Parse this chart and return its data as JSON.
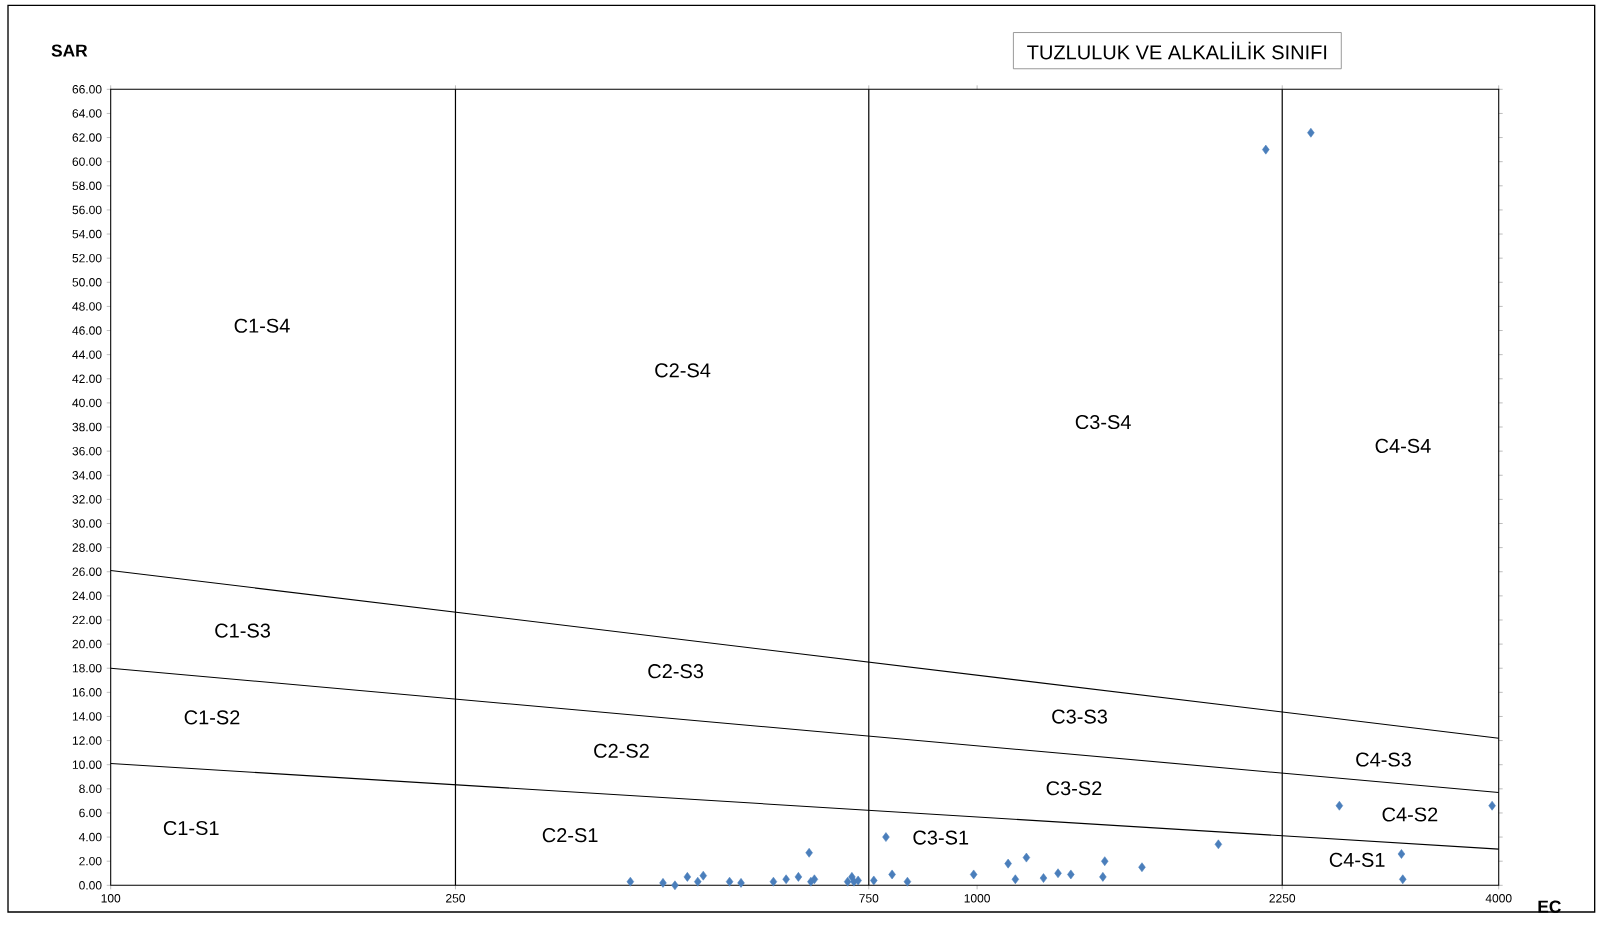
{
  "chart_data": {
    "type": "scatter",
    "title": "TUZLULUK VE ALKALİLİK SINIFI",
    "xlabel": "EC",
    "ylabel": "SAR",
    "log": "x",
    "marker": "diamond",
    "xlim": [
      100,
      4000
    ],
    "ylim": [
      0,
      66
    ],
    "xticks": [
      100,
      250,
      750,
      1000,
      2250,
      4000
    ],
    "yticks": [
      {
        "value": 0,
        "label": "0.00"
      },
      {
        "value": 2,
        "label": "2.00"
      },
      {
        "value": 4,
        "label": "4.00"
      },
      {
        "value": 6,
        "label": "6.00"
      },
      {
        "value": 8,
        "label": "8.00"
      },
      {
        "value": 10,
        "label": "10.00"
      },
      {
        "value": 12,
        "label": "12.00"
      },
      {
        "value": 14,
        "label": "14.00"
      },
      {
        "value": 16,
        "label": "16.00"
      },
      {
        "value": 18,
        "label": "18.00"
      },
      {
        "value": 20,
        "label": "20.00"
      },
      {
        "value": 22,
        "label": "22.00"
      },
      {
        "value": 24,
        "label": "24.00"
      },
      {
        "value": 26,
        "label": "26.00"
      },
      {
        "value": 28,
        "label": "28.00"
      },
      {
        "value": 30,
        "label": "30.00"
      },
      {
        "value": 32,
        "label": "32.00"
      },
      {
        "value": 34,
        "label": "34.00"
      },
      {
        "value": 36,
        "label": "36.00"
      },
      {
        "value": 38,
        "label": "38.00"
      },
      {
        "value": 40,
        "label": "40.00"
      },
      {
        "value": 42,
        "label": "42.00"
      },
      {
        "value": 44,
        "label": "44.00"
      },
      {
        "value": 46,
        "label": "46.00"
      },
      {
        "value": 48,
        "label": "48.00"
      },
      {
        "value": 50,
        "label": "50.00"
      },
      {
        "value": 52,
        "label": "52.00"
      },
      {
        "value": 54,
        "label": "54.00"
      },
      {
        "value": 56,
        "label": "56.00"
      },
      {
        "value": 58,
        "label": "58.00"
      },
      {
        "value": 60,
        "label": "60.00"
      },
      {
        "value": 62,
        "label": "62.00"
      },
      {
        "value": 64,
        "label": "64.00"
      },
      {
        "value": 66,
        "label": "66.00"
      }
    ],
    "series": [
      {
        "type": "line",
        "marker": "none",
        "color": "#000000",
        "x": [
          100,
          4000
        ],
        "values": [
          10.1,
          3.0
        ]
      },
      {
        "type": "line",
        "marker": "none",
        "color": "#000000",
        "x": [
          100,
          4000
        ],
        "values": [
          18.0,
          7.7
        ]
      },
      {
        "type": "line",
        "marker": "none",
        "color": "#000000",
        "x": [
          100,
          4000
        ],
        "values": [
          26.1,
          12.2
        ]
      },
      {
        "color": "#4a7ebb",
        "x": [
          398,
          434,
          448,
          463,
          476,
          483,
          518,
          534,
          582,
          602,
          622,
          640,
          643,
          649,
          709,
          717,
          721,
          729,
          760,
          785,
          798,
          831,
          991,
          1086,
          1107,
          1140,
          1193,
          1240,
          1283,
          1397,
          1404,
          1550,
          1899,
          2154,
          2428,
          2619,
          3089,
          3100,
          3931
        ],
        "values": [
          0.3,
          0.2,
          0.0,
          0.7,
          0.3,
          0.8,
          0.3,
          0.2,
          0.3,
          0.5,
          0.7,
          2.7,
          0.3,
          0.5,
          0.3,
          0.7,
          0.3,
          0.4,
          0.4,
          4.0,
          0.9,
          0.3,
          0.9,
          1.8,
          0.5,
          2.3,
          0.6,
          1.0,
          0.9,
          0.7,
          2.0,
          1.5,
          3.4,
          61.0,
          62.4,
          6.6,
          2.6,
          0.5,
          6.6
        ]
      }
    ],
    "ref_lines": [
      {
        "axis": "x",
        "value": 250,
        "color": "#000000"
      },
      {
        "axis": "x",
        "value": 750,
        "color": "#000000"
      },
      {
        "axis": "x",
        "value": 2250,
        "color": "#000000"
      }
    ],
    "annotations": [
      "C1-S4",
      "C2-S4",
      "C3-S4",
      "C4-S4",
      "C1-S3",
      "C2-S3",
      "C3-S3",
      "C4-S3",
      "C1-S2",
      "C2-S2",
      "C3-S2",
      "C4-S2",
      "C1-S1",
      "C2-S1",
      "C3-S1",
      "C4-S1"
    ]
  }
}
